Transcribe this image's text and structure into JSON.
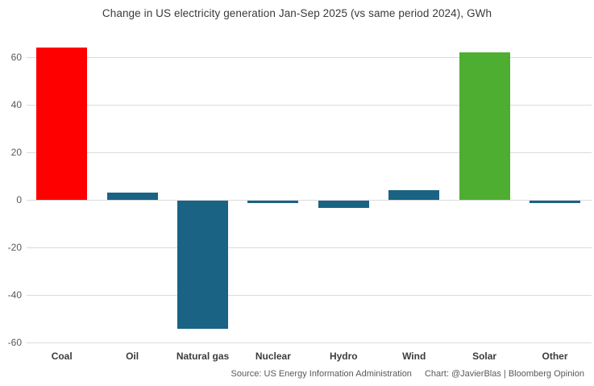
{
  "title": "Change in US electricity generation Jan-Sep 2025  (vs same period 2024), GWh",
  "chart_data": {
    "type": "bar",
    "title": "Change in US electricity generation Jan-Sep 2025  (vs same period 2024), GWh",
    "categories": [
      "Coal",
      "Oil",
      "Natural gas",
      "Nuclear",
      "Hydro",
      "Wind",
      "Solar",
      "Other"
    ],
    "values": [
      64,
      3,
      -54,
      -1,
      -3,
      4,
      62,
      -1
    ],
    "bar_colors": [
      "#ff0000",
      "#1a6384",
      "#1a6384",
      "#1a6384",
      "#1a6384",
      "#1a6384",
      "#4dae31",
      "#1a6384"
    ],
    "xlabel": "",
    "ylabel": "GWh",
    "ylim": [
      -62,
      67
    ],
    "yticks": [
      60,
      40,
      20,
      0,
      -20,
      -40,
      -60
    ],
    "grid": "horizontal",
    "legend": "none"
  },
  "colors": {
    "positive_highlight": "#ff0000",
    "neutral_bar": "#1a6384",
    "renewable_highlight": "#4dae31",
    "gridline": "#dbdbdb",
    "tick_text": "#595959",
    "category_text": "#3c3c3c",
    "title_text": "#3a3a3a"
  },
  "footer": {
    "source": "Source: US Energy Information Administration",
    "credit": "Chart: @JavierBlas | Bloomberg Opinion"
  }
}
